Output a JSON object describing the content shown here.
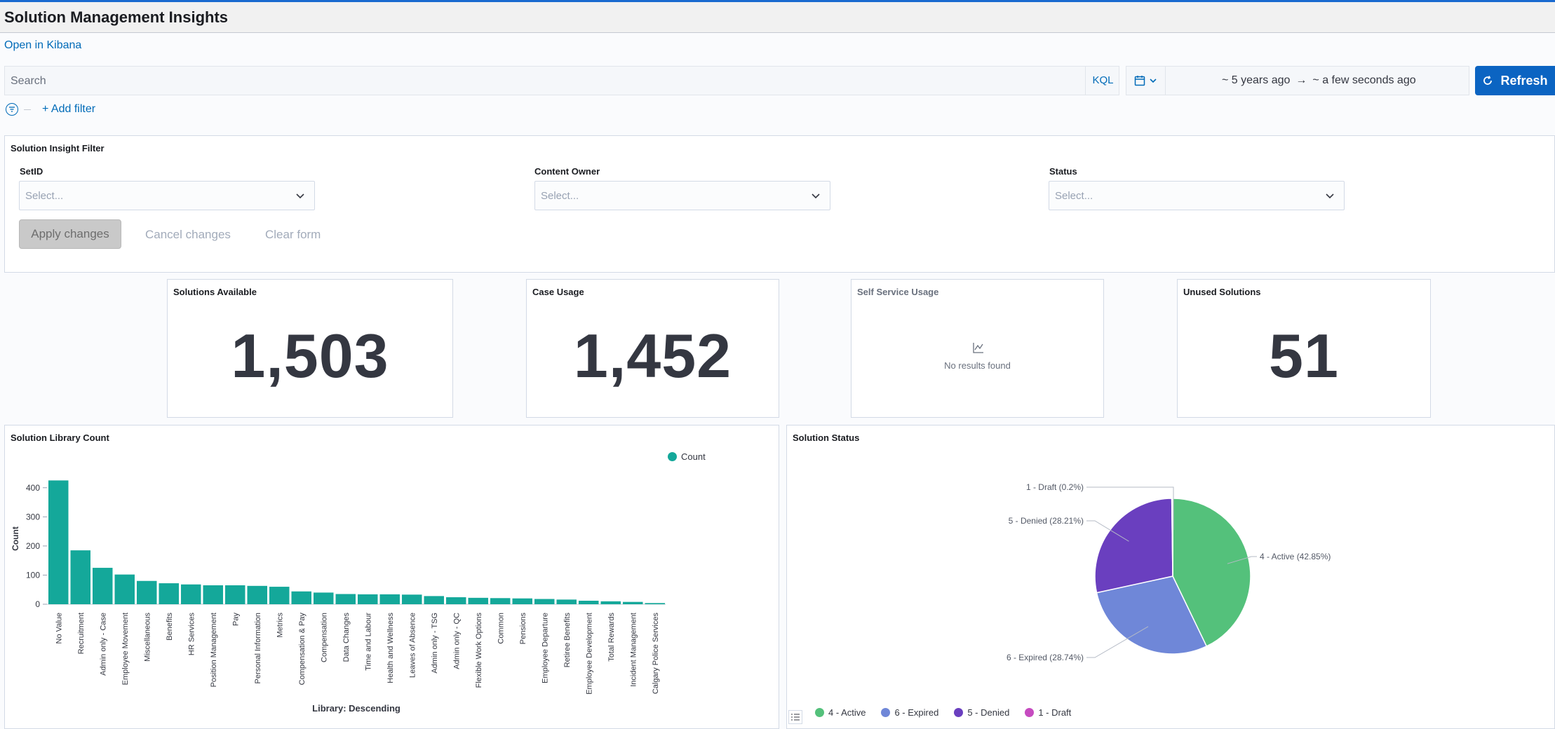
{
  "header": {
    "title": "Solution Management Insights"
  },
  "links": {
    "open_kibana": "Open in Kibana"
  },
  "search": {
    "placeholder": "Search",
    "language": "KQL"
  },
  "time": {
    "start": "~ 5 years ago",
    "arrow": "→",
    "end": "~ a few seconds ago"
  },
  "toolbar": {
    "refresh_label": "Refresh",
    "add_filter_label": "+ Add filter"
  },
  "insight_filter": {
    "title": "Solution Insight Filter",
    "controls": [
      {
        "label": "SetID",
        "placeholder": "Select..."
      },
      {
        "label": "Content Owner",
        "placeholder": "Select..."
      },
      {
        "label": "Status",
        "placeholder": "Select..."
      }
    ],
    "apply_label": "Apply changes",
    "cancel_label": "Cancel changes",
    "clear_label": "Clear form"
  },
  "metrics": [
    {
      "title": "Solutions Available",
      "value": "1,503"
    },
    {
      "title": "Case Usage",
      "value": "1,452"
    },
    {
      "title": "Self Service Usage",
      "value": "",
      "empty_text": "No results found"
    },
    {
      "title": "Unused Solutions",
      "value": "51"
    }
  ],
  "library_chart": {
    "title": "Solution Library Count",
    "chart_data": {
      "type": "bar",
      "xlabel": "Library: Descending",
      "ylabel": "Count",
      "ylim": [
        0,
        450
      ],
      "yticks": [
        0,
        100,
        200,
        300,
        400
      ],
      "legend": [
        "Count"
      ],
      "legend_position": "top-right",
      "color": "#14a89a",
      "categories": [
        "No Value",
        "Recruitment",
        "Admin only - Case",
        "Employee Movement",
        "Miscellaneous",
        "Benefits",
        "HR Services",
        "Position Management",
        "Pay",
        "Personal Information",
        "Metrics",
        "Compensation & Pay",
        "Compensation",
        "Data Changes",
        "Time and Labour",
        "Health and Wellness",
        "Leaves of Absence",
        "Admin only - TSG",
        "Admin only - QC",
        "Flexible Work Options",
        "Common",
        "Pensions",
        "Employee Departure",
        "Retiree Benefits",
        "Employee Development",
        "Total Rewards",
        "Incident Management",
        "Calgary Police Services"
      ],
      "values": [
        425,
        185,
        125,
        102,
        80,
        72,
        68,
        65,
        65,
        63,
        60,
        44,
        40,
        35,
        34,
        34,
        33,
        28,
        24,
        22,
        21,
        20,
        18,
        16,
        12,
        10,
        8,
        4
      ]
    }
  },
  "status_chart": {
    "title": "Solution Status",
    "chart_data": {
      "type": "pie",
      "labels": [
        "4 - Active",
        "6 - Expired",
        "5 - Denied",
        "1 - Draft"
      ],
      "values": [
        42.85,
        28.74,
        28.21,
        0.2
      ],
      "slice_labels": [
        "4 - Active (42.85%)",
        "6 - Expired (28.74%)",
        "5 - Denied (28.21%)",
        "1 - Draft (0.2%)"
      ],
      "colors": [
        "#54c17b",
        "#6f87d8",
        "#6a3fbf",
        "#c64bc0"
      ],
      "legend_position": "bottom-left"
    }
  }
}
